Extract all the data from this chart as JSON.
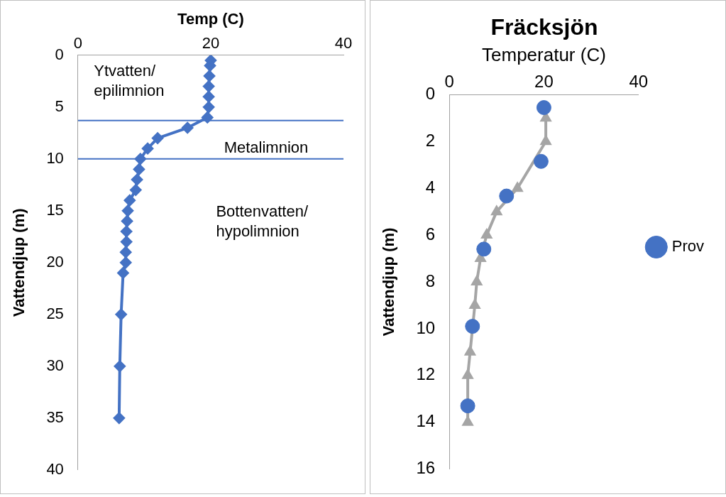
{
  "chart_data": [
    {
      "type": "line",
      "xlabel": "Temp (C)",
      "ylabel": "Vattendjup (m)",
      "xlim": [
        0,
        40
      ],
      "xticks": [
        0,
        20,
        40
      ],
      "ylim": [
        40,
        0
      ],
      "yticks": [
        0,
        5,
        10,
        15,
        20,
        25,
        30,
        35,
        40
      ],
      "grid": false,
      "legend": false,
      "marker": "diamond",
      "line_style": "solid",
      "series": [
        {
          "color": "#4472c4",
          "x": [
            20.0,
            19.9,
            19.8,
            19.7,
            19.7,
            19.7,
            19.5,
            16.5,
            12.0,
            10.5,
            9.4,
            9.2,
            8.9,
            8.7,
            7.8,
            7.5,
            7.4,
            7.3,
            7.3,
            7.2,
            7.2,
            6.8,
            6.5,
            6.3,
            6.2
          ],
          "values": [
            0.5,
            1,
            2,
            3,
            4,
            5,
            6,
            7,
            8,
            9,
            10,
            11,
            12,
            13,
            14,
            15,
            16,
            17,
            18,
            19,
            20,
            21,
            25,
            30,
            35
          ]
        }
      ],
      "ref_lines": [
        {
          "axis": "y",
          "value": 6.3,
          "color": "#4472c4"
        },
        {
          "axis": "y",
          "value": 10,
          "color": "#4472c4"
        }
      ],
      "annotations": [
        "Ytvatten/\nepilimnion",
        "Metalimnion",
        "Bottenvatten/\nhypolimnion"
      ]
    },
    {
      "type": "scatter",
      "title": "Fräcksjön",
      "xlabel": "Temperatur (C)",
      "ylabel": "Vattendjup (m)",
      "xlim": [
        0,
        40
      ],
      "xticks": [
        0,
        20,
        40
      ],
      "ylim": [
        16,
        0
      ],
      "yticks": [
        0,
        2,
        4,
        6,
        8,
        10,
        12,
        14,
        16
      ],
      "grid": false,
      "legend": "right",
      "series": [
        {
          "type": "line",
          "color": "#a5a5a5",
          "marker": "triangle",
          "line_style": "solid",
          "x": [
            20.4,
            20.4,
            14.4,
            10.0,
            7.9,
            6.6,
            5.8,
            5.4,
            4.4,
            3.9,
            3.9
          ],
          "values": [
            1,
            2,
            4,
            5,
            6,
            7,
            8,
            9,
            11,
            12,
            14
          ]
        },
        {
          "name": "Prov",
          "color": "#4472c4",
          "marker": "circle",
          "x": [
            20.0,
            19.4,
            12.1,
            7.3,
            4.9,
            3.9
          ],
          "values": [
            0.55,
            2.85,
            4.33,
            6.6,
            9.9,
            13.3
          ]
        }
      ]
    }
  ]
}
